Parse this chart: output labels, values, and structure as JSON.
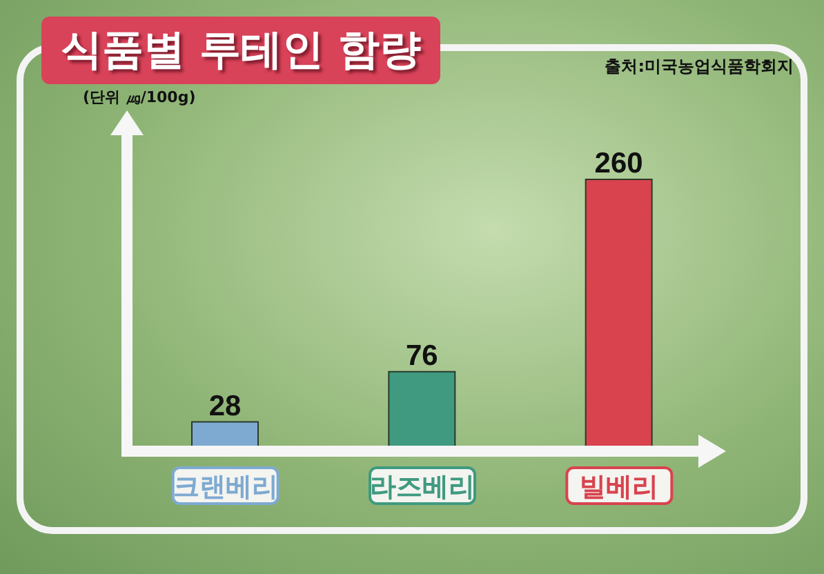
{
  "chart_data": {
    "type": "bar",
    "title": "식품별 루테인 함량",
    "ylabel": "(단위 ㎍/100g)",
    "annotations": [
      "출처:미국농업식품학회지"
    ],
    "categories": [
      "크랜베리",
      "라즈베리",
      "빌베리"
    ],
    "values": [
      28,
      76,
      260
    ],
    "colors": [
      "#7eaad2",
      "#3f9a80",
      "#d8434e"
    ],
    "data_labels": true
  }
}
